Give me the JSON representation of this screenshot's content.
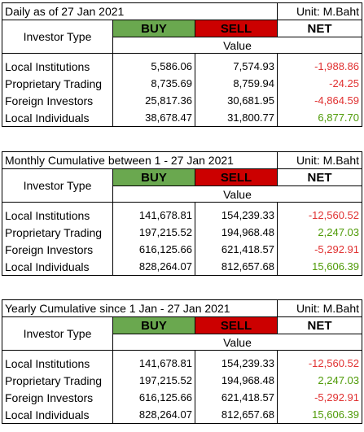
{
  "sections": [
    {
      "title": "Daily as of 27 Jan 2021",
      "unit": "Unit: M.Baht",
      "investor_type_label": "Investor Type",
      "buy_label": "BUY",
      "sell_label": "SELL",
      "net_label": "NET",
      "value_label": "Value",
      "rows": [
        {
          "type": "Local Institutions",
          "buy": "5,586.06",
          "sell": "7,574.93",
          "net": "-1,988.86"
        },
        {
          "type": "Proprietary Trading",
          "buy": "8,735.69",
          "sell": "8,759.94",
          "net": "-24.25"
        },
        {
          "type": "Foreign Investors",
          "buy": "25,817.36",
          "sell": "30,681.95",
          "net": "-4,864.59"
        },
        {
          "type": "Local Individuals",
          "buy": "38,678.47",
          "sell": "31,800.77",
          "net": "6,877.70"
        }
      ]
    },
    {
      "title": "Monthly Cumulative between 1 - 27 Jan 2021",
      "unit": "Unit: M.Baht",
      "investor_type_label": "Investor Type",
      "buy_label": "BUY",
      "sell_label": "SELL",
      "net_label": "NET",
      "value_label": "Value",
      "rows": [
        {
          "type": "Local Institutions",
          "buy": "141,678.81",
          "sell": "154,239.33",
          "net": "-12,560.52"
        },
        {
          "type": "Proprietary Trading",
          "buy": "197,215.52",
          "sell": "194,968.48",
          "net": "2,247.03"
        },
        {
          "type": "Foreign Investors",
          "buy": "616,125.66",
          "sell": "621,418.57",
          "net": "-5,292.91"
        },
        {
          "type": "Local Individuals",
          "buy": "828,264.07",
          "sell": "812,657.68",
          "net": "15,606.39"
        }
      ]
    },
    {
      "title": "Yearly Cumulative since 1 Jan - 27 Jan 2021",
      "unit": "Unit: M.Baht",
      "investor_type_label": "Investor Type",
      "buy_label": "BUY",
      "sell_label": "SELL",
      "net_label": "NET",
      "value_label": "Value",
      "rows": [
        {
          "type": "Local Institutions",
          "buy": "141,678.81",
          "sell": "154,239.33",
          "net": "-12,560.52"
        },
        {
          "type": "Proprietary Trading",
          "buy": "197,215.52",
          "sell": "194,968.48",
          "net": "2,247.03"
        },
        {
          "type": "Foreign Investors",
          "buy": "616,125.66",
          "sell": "621,418.57",
          "net": "-5,292.91"
        },
        {
          "type": "Local Individuals",
          "buy": "828,264.07",
          "sell": "812,657.68",
          "net": "15,606.39"
        }
      ]
    }
  ],
  "colors": {
    "buy_header_bg": "#6aa84f",
    "sell_header_bg": "#cc0000",
    "negative_text": "#e03131",
    "positive_text": "#4e9a06"
  }
}
